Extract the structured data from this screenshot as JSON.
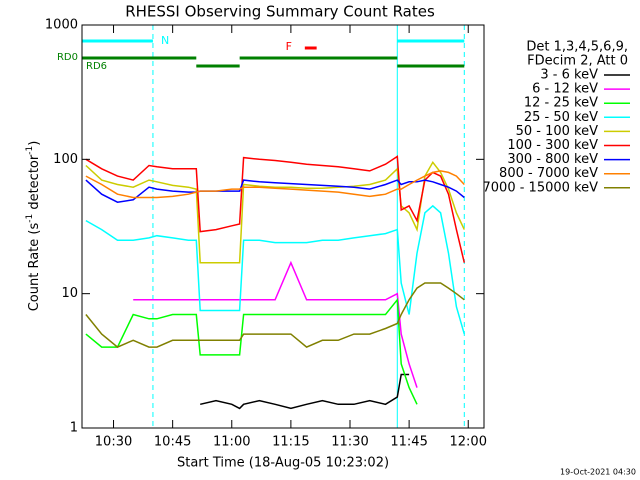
{
  "chart_data": {
    "type": "line",
    "title": "RHESSI Observing Summary Count Rates",
    "x_label": "Start Time (18-Aug-05 10:23:02)",
    "y_label": [
      "Count Rate (s",
      "-1",
      " detector",
      "-1",
      ")"
    ],
    "footer": "19-Oct-2021 04:30",
    "legend_header": [
      "Det 1,3,4,5,6,9,",
      "FDecim 2, Att 0"
    ],
    "log_y": true,
    "xlim": [
      "10:22",
      "12:04"
    ],
    "xticks": [
      "10:30",
      "10:45",
      "11:00",
      "11:15",
      "11:30",
      "11:45",
      "12:00"
    ],
    "ylim": [
      1,
      1000
    ],
    "yticks": [
      1,
      10,
      100,
      1000
    ],
    "annotations": [
      {
        "label": "N",
        "color": "#00ffff",
        "start": "10:22",
        "end": "10:40"
      },
      {
        "color": "#00ffff",
        "start": "11:42",
        "end": "11:59"
      },
      {
        "label": "F",
        "color": "#ff0000",
        "start": "11:16",
        "end": "11:19"
      }
    ],
    "attenuator": {
      "labels": [
        "RD0",
        "RD6"
      ],
      "color": "#008000",
      "segments": [
        {
          "start": "10:22",
          "end": "10:51",
          "level": 0
        },
        {
          "start": "10:51",
          "end": "11:02",
          "level": 1
        },
        {
          "start": "11:02",
          "end": "11:42",
          "level": 0
        },
        {
          "start": "11:42",
          "end": "11:59",
          "level": 1
        }
      ]
    },
    "x": [
      "10:23",
      "10:27",
      "10:31",
      "10:35",
      "10:39",
      "10:41",
      "10:45",
      "10:49",
      "10:51",
      "10:52",
      "10:56",
      "11:00",
      "11:02",
      "11:03",
      "11:07",
      "11:11",
      "11:15",
      "11:19",
      "11:23",
      "11:27",
      "11:31",
      "11:35",
      "11:39",
      "11:42",
      "11:43",
      "11:45",
      "11:47",
      "11:49",
      "11:51",
      "11:53",
      "11:55",
      "11:57",
      "11:59"
    ],
    "series": [
      {
        "name": "3 - 6 keV",
        "color": "#000000",
        "values": [
          null,
          null,
          null,
          null,
          null,
          null,
          null,
          null,
          null,
          1.5,
          1.6,
          1.5,
          1.4,
          1.5,
          1.6,
          1.5,
          1.4,
          1.5,
          1.6,
          1.5,
          1.5,
          1.6,
          1.5,
          1.7,
          2.5,
          2.5,
          null,
          null,
          null,
          null,
          null,
          null,
          null
        ]
      },
      {
        "name": "6 - 12 keV",
        "color": "#ff00ff",
        "values": [
          null,
          null,
          null,
          9,
          9,
          9,
          9,
          9,
          9,
          9,
          9,
          9,
          9,
          9,
          9,
          9,
          17,
          9,
          9,
          9,
          9,
          9,
          9,
          10,
          5,
          3,
          2,
          null,
          null,
          null,
          null,
          null,
          null
        ]
      },
      {
        "name": "12 - 25 keV",
        "color": "#00ff00",
        "values": [
          5,
          4,
          4,
          7,
          6.5,
          6.5,
          7,
          7,
          7,
          3.5,
          3.5,
          3.5,
          3.5,
          7,
          7,
          7,
          7,
          7,
          7,
          7,
          7,
          7,
          7,
          9,
          3,
          2,
          1.5,
          null,
          null,
          null,
          null,
          null,
          null
        ]
      },
      {
        "name": "25 - 50 keV",
        "color": "#00ffff",
        "values": [
          35,
          30,
          25,
          25,
          26,
          27,
          26,
          25,
          25,
          7.5,
          7.5,
          7.5,
          7.5,
          25,
          25,
          24,
          24,
          24,
          25,
          25,
          26,
          27,
          28,
          30,
          12,
          7,
          20,
          40,
          45,
          40,
          20,
          8,
          5
        ]
      },
      {
        "name": "50 - 100 keV",
        "color": "#cccc00",
        "values": [
          90,
          70,
          65,
          62,
          70,
          68,
          64,
          62,
          60,
          17,
          17,
          17,
          17,
          65,
          63,
          62,
          62,
          61,
          61,
          62,
          63,
          65,
          70,
          85,
          45,
          40,
          30,
          75,
          95,
          80,
          60,
          40,
          30
        ]
      },
      {
        "name": "100 - 300 keV",
        "color": "#ff0000",
        "values": [
          100,
          85,
          75,
          70,
          90,
          88,
          85,
          85,
          85,
          29,
          30,
          32,
          33,
          103,
          100,
          98,
          95,
          92,
          90,
          88,
          85,
          82,
          92,
          105,
          42,
          45,
          35,
          70,
          80,
          75,
          55,
          30,
          17
        ]
      },
      {
        "name": "300 - 800 keV",
        "color": "#0000ff",
        "values": [
          70,
          55,
          48,
          50,
          62,
          60,
          58,
          57,
          57,
          58,
          58,
          58,
          58,
          70,
          68,
          67,
          66,
          65,
          64,
          63,
          62,
          60,
          65,
          70,
          65,
          68,
          68,
          70,
          68,
          65,
          62,
          58,
          52
        ]
      },
      {
        "name": "800 - 7000 keV",
        "color": "#ff8000",
        "values": [
          75,
          65,
          55,
          52,
          52,
          52,
          53,
          55,
          57,
          58,
          58,
          60,
          60,
          62,
          62,
          61,
          60,
          59,
          58,
          57,
          55,
          53,
          55,
          60,
          60,
          65,
          70,
          75,
          80,
          82,
          80,
          75,
          65
        ]
      },
      {
        "name": "7000 - 15000 keV",
        "color": "#808000",
        "values": [
          7,
          5,
          4,
          4.5,
          4,
          4,
          4.5,
          4.5,
          4.5,
          4.5,
          4.5,
          4.5,
          4.5,
          5,
          5,
          5,
          5,
          4,
          4.5,
          4.5,
          5,
          5,
          5.5,
          6,
          7,
          9,
          11,
          12,
          12,
          12,
          11,
          10,
          9
        ]
      }
    ]
  }
}
